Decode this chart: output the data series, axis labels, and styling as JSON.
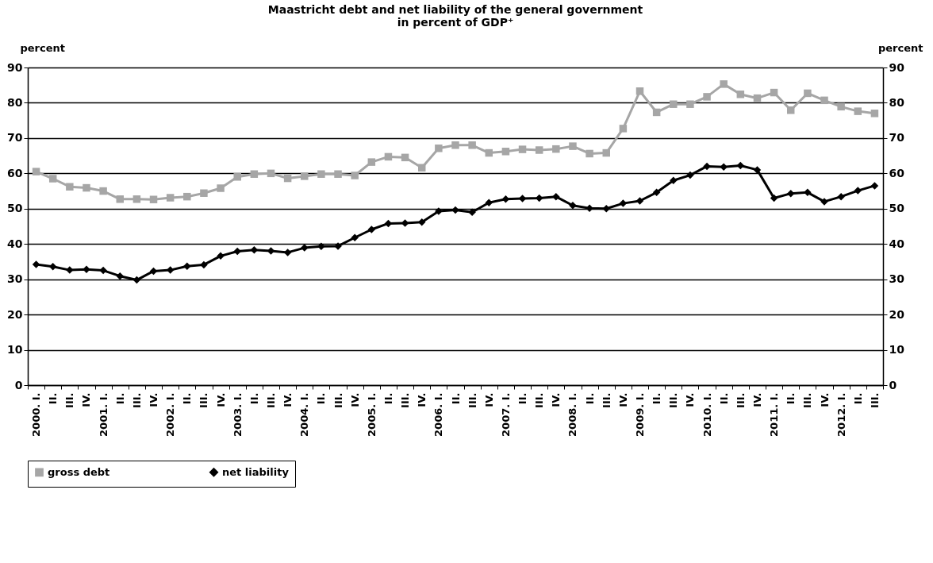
{
  "chart_data": {
    "type": "line",
    "title": [
      "Maastricht debt and net liability of the general government",
      "in percent of GDP⁺"
    ],
    "ylabel": "percent",
    "y2label": "percent",
    "categories": [
      "2000. I.",
      "II.",
      "III.",
      "IV.",
      "2001. I.",
      "II.",
      "III.",
      "IV.",
      "2002. I.",
      "II.",
      "III.",
      "IV.",
      "2003. I.",
      "II.",
      "III.",
      "IV.",
      "2004. I.",
      "II.",
      "III.",
      "IV.",
      "2005. I.",
      "II.",
      "III.",
      "IV.",
      "2006. I.",
      "II.",
      "III.",
      "IV.",
      "2007. I.",
      "II.",
      "III.",
      "IV.",
      "2008. I.",
      "II.",
      "III.",
      "IV.",
      "2009. I.",
      "II.",
      "III.",
      "IV.",
      "2010. I.",
      "II.",
      "III.",
      "IV.",
      "2011. I.",
      "II.",
      "III.",
      "IV.",
      "2012. I.",
      "II.",
      "III."
    ],
    "series": [
      {
        "name": "gross debt",
        "color": "#a6a6a6",
        "marker": "square",
        "values": [
          60.5,
          58.5,
          56.2,
          55.9,
          55.0,
          52.7,
          52.7,
          52.6,
          53.1,
          53.4,
          54.4,
          55.8,
          59.0,
          59.8,
          60.0,
          58.6,
          59.2,
          59.8,
          59.8,
          59.4,
          63.2,
          64.7,
          64.5,
          61.6,
          67.1,
          68.0,
          68.0,
          65.8,
          66.2,
          66.8,
          66.6,
          66.9,
          67.7,
          65.6,
          65.8,
          72.7,
          83.3,
          77.3,
          79.6,
          79.6,
          81.7,
          85.3,
          82.4,
          81.3,
          82.9,
          77.9,
          82.7,
          80.7,
          78.9,
          77.6,
          77.0
        ]
      },
      {
        "name": "net liability",
        "color": "#000000",
        "marker": "diamond",
        "values": [
          34.2,
          33.6,
          32.6,
          32.8,
          32.5,
          30.9,
          29.8,
          32.3,
          32.6,
          33.7,
          34.1,
          36.6,
          37.9,
          38.3,
          38.0,
          37.6,
          38.9,
          39.3,
          39.4,
          41.8,
          44.1,
          45.8,
          45.9,
          46.2,
          49.3,
          49.6,
          49.0,
          51.7,
          52.7,
          52.9,
          53.0,
          53.4,
          50.9,
          50.1,
          50.0,
          51.5,
          52.2,
          54.6,
          58.0,
          59.5,
          62.0,
          61.8,
          62.2,
          61.0,
          53.0,
          54.3,
          54.6,
          52.0,
          53.4,
          55.1,
          56.5
        ]
      }
    ],
    "ylim": [
      0,
      90
    ],
    "yticks": [
      0,
      10,
      20,
      30,
      40,
      50,
      60,
      70,
      80,
      90
    ],
    "y2lim": [
      0,
      90
    ],
    "y2ticks": [
      0,
      10,
      20,
      30,
      40,
      50,
      60,
      70,
      80,
      90
    ],
    "grid": "y",
    "legend": "bottom",
    "line_style": "solid"
  }
}
